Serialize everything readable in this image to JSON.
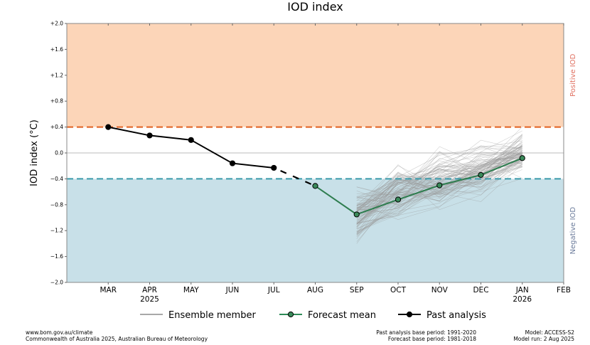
{
  "chart_data": {
    "type": "line",
    "title": "IOD index",
    "ylabel": "IOD index (°C)",
    "ylim": [
      -2.0,
      2.0
    ],
    "yticks": [
      2.0,
      1.6,
      1.2,
      0.8,
      0.4,
      0.0,
      -0.4,
      -0.8,
      -1.2,
      -1.6,
      -2.0
    ],
    "ytick_labels": [
      "+2.0",
      "+1.6",
      "+1.2",
      "+0.8",
      "+0.4",
      "0.0",
      "−0.4",
      "−0.8",
      "−1.2",
      "−1.6",
      "−2.0"
    ],
    "x_range": [
      -1,
      11
    ],
    "categories": [
      "MAR",
      "APR",
      "MAY",
      "JUN",
      "JUL",
      "AUG",
      "SEP",
      "OCT",
      "NOV",
      "DEC",
      "JAN",
      "FEB"
    ],
    "year_labels": [
      {
        "index": 1,
        "text": "2025"
      },
      {
        "index": 10,
        "text": "2026"
      }
    ],
    "thresholds": {
      "positive": 0.4,
      "negative": -0.4,
      "positive_color": "#fcd5b8",
      "negative_color": "#c8e0e8",
      "positive_line_color": "#e06020",
      "negative_line_color": "#3a9aaa"
    },
    "region_labels": {
      "positive": "Positive IOD",
      "negative": "Negative IOD",
      "positive_color": "#e07060",
      "negative_color": "#6a7a9a"
    },
    "past_analysis": {
      "x": [
        0,
        1,
        2,
        3,
        4
      ],
      "values": [
        0.4,
        0.27,
        0.2,
        -0.16,
        -0.23
      ]
    },
    "transition": {
      "x": [
        4,
        5
      ],
      "values": [
        -0.23,
        -0.51
      ]
    },
    "forecast_mean": {
      "x": [
        5,
        6,
        7,
        8,
        9,
        10
      ],
      "values": [
        -0.51,
        -0.95,
        -0.72,
        -0.5,
        -0.34,
        -0.08
      ]
    },
    "ensemble": {
      "count": 99,
      "x_start": 6,
      "x_end": 10
    },
    "legend": [
      {
        "name": "Ensemble member",
        "color": "#a8a8a8"
      },
      {
        "name": "Forecast mean",
        "color": "#2e8b57"
      },
      {
        "name": "Past analysis",
        "color": "#000000"
      }
    ],
    "colors": {
      "past": "#000000",
      "forecast": "#2e7d4f",
      "forecast_marker": "#3a8a5a",
      "ensemble": "#9a9a9a"
    }
  },
  "footer": {
    "url": "www.bom.gov.au/climate",
    "copyright": "Commonwealth of Australia 2025, Australian Bureau of Meteorology",
    "past_base": "Past analysis base period: 1991-2020",
    "forecast_base": "Forecast base period: 1981-2018",
    "model": "Model: ACCESS-S2",
    "model_run": "Model run: 2 Aug 2025"
  }
}
